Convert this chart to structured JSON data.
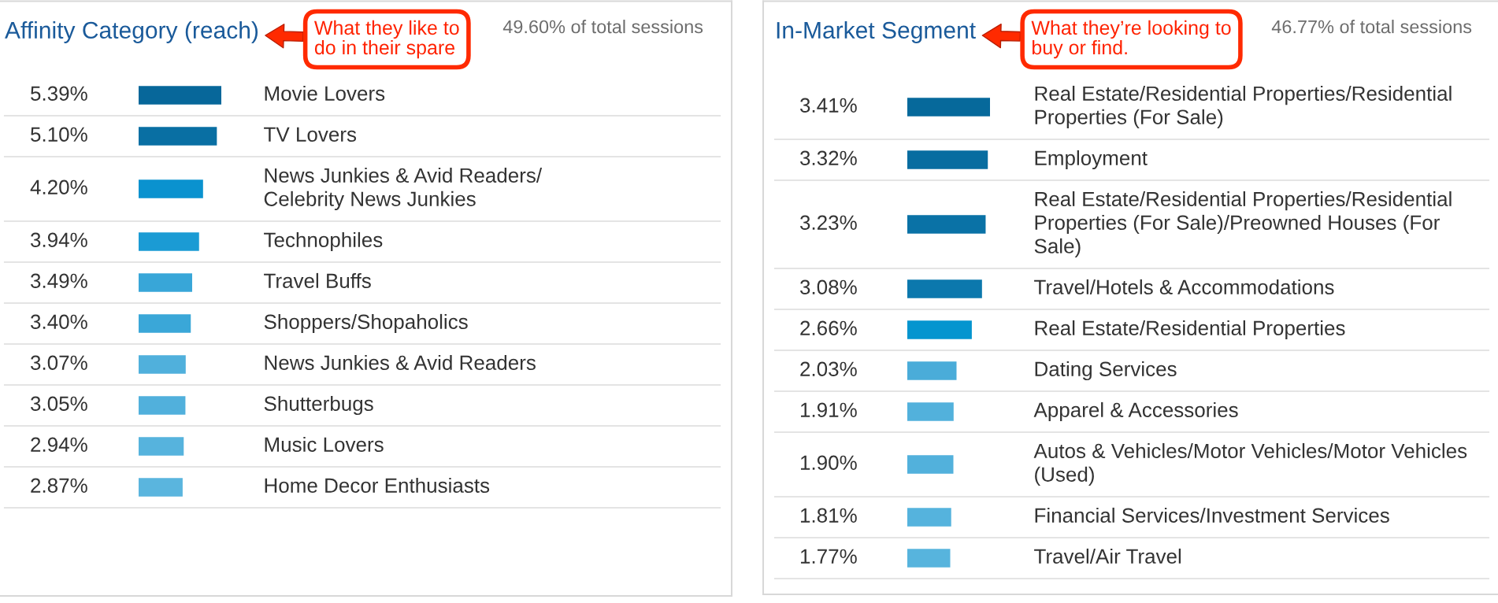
{
  "chart_data": [
    {
      "type": "bar",
      "orientation": "horizontal",
      "title": "Affinity Category (reach)",
      "subtitle": "49.60% of total sessions",
      "categories": [
        "Movie Lovers",
        "TV Lovers",
        "News Junkies & Avid Readers/Celebrity News Junkies",
        "Technophiles",
        "Travel Buffs",
        "Shoppers/Shopaholics",
        "News Junkies & Avid Readers",
        "Shutterbugs",
        "Music Lovers",
        "Home Decor Enthusiasts"
      ],
      "values": [
        5.39,
        5.1,
        4.2,
        3.94,
        3.49,
        3.4,
        3.07,
        3.05,
        2.94,
        2.87
      ],
      "value_labels": [
        "5.39%",
        "5.10%",
        "4.20%",
        "3.94%",
        "3.49%",
        "3.40%",
        "3.07%",
        "3.05%",
        "2.94%",
        "2.87%"
      ],
      "colors": [
        "#07679a",
        "#096fa3",
        "#0a92cf",
        "#1b9bd4",
        "#38a6d8",
        "#3aa7d8",
        "#50b0dc",
        "#51b0dc",
        "#56b3dd",
        "#5ab5de"
      ],
      "annotations": [
        "What they like to do in their spare"
      ]
    },
    {
      "type": "bar",
      "orientation": "horizontal",
      "title": "In-Market Segment",
      "subtitle": "46.77% of total sessions",
      "categories": [
        "Real Estate/Residential Properties/Residential Properties (For Sale)",
        "Employment",
        "Real Estate/Residential Properties/Residential Properties (For Sale)/Preowned Houses (For Sale)",
        "Travel/Hotels & Accommodations",
        "Real Estate/Residential Properties",
        "Dating Services",
        "Apparel & Accessories",
        "Autos & Vehicles/Motor Vehicles/Motor Vehicles (Used)",
        "Financial Services/Investment Services",
        "Travel/Air Travel"
      ],
      "values": [
        3.41,
        3.32,
        3.23,
        3.08,
        2.66,
        2.03,
        1.91,
        1.9,
        1.81,
        1.77
      ],
      "value_labels": [
        "3.41%",
        "3.32%",
        "3.23%",
        "3.08%",
        "2.66%",
        "2.03%",
        "1.91%",
        "1.90%",
        "1.81%",
        "1.77%"
      ],
      "colors": [
        "#06699b",
        "#086da0",
        "#0a72a6",
        "#0c78ad",
        "#0595cf",
        "#4aacd9",
        "#52b1dc",
        "#52b1dc",
        "#55b3dd",
        "#57b4dd"
      ],
      "annotations": [
        "What they’re looking to buy or find."
      ]
    }
  ]
}
